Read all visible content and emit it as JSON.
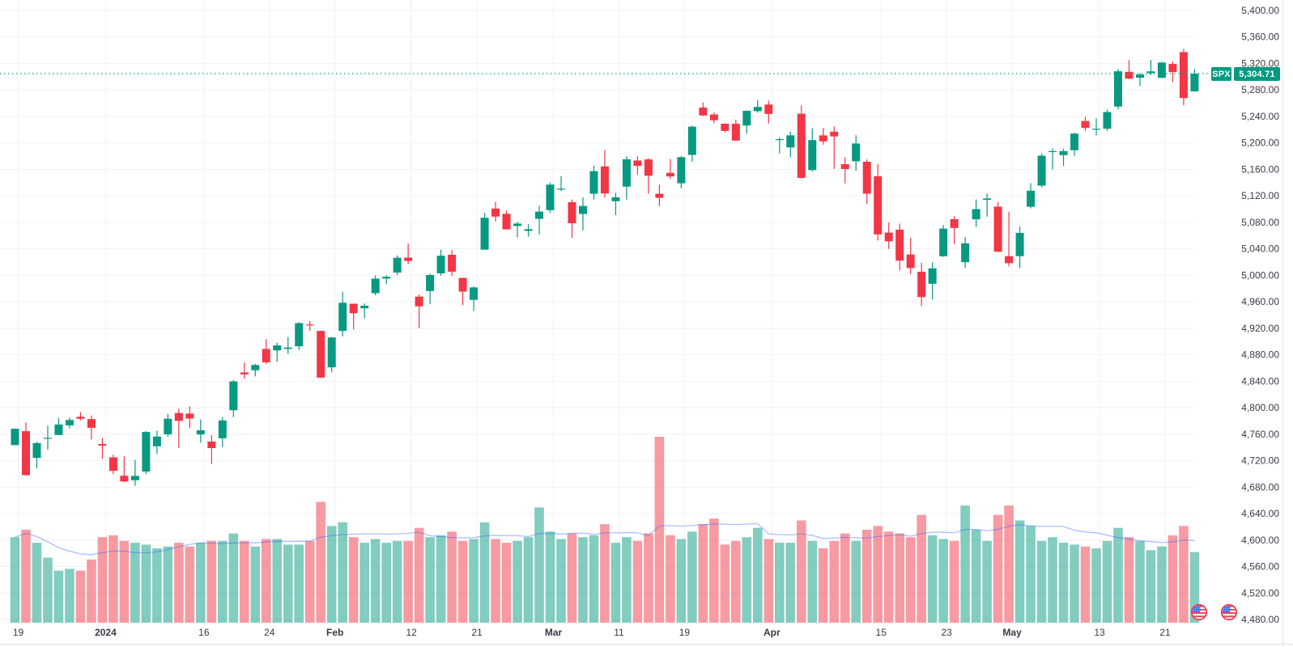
{
  "symbol": {
    "label": "SPX",
    "last_price_label": "5,304.71"
  },
  "colors": {
    "background": "#ffffff",
    "up": "#089981",
    "down": "#f23645",
    "volume_up": "rgba(8,153,129,0.5)",
    "volume_down": "rgba(242,54,69,0.5)",
    "grid": "#f0f2f6",
    "axis_text": "#363a45",
    "axis_border": "#e0e3eb",
    "volume_ma_line": "rgba(41,98,255,0.40)",
    "price_line": "#089981",
    "badge": "#089981",
    "flag_ring": "#ef4056",
    "flag_canton": "#2b5cff",
    "flag_stripe": "#f04a5e"
  },
  "chart_data": {
    "type": "candlestick",
    "title": "SPX",
    "last_price": 5304.71,
    "grid": true,
    "legend_position": "none",
    "price_axis": {
      "min": 4480,
      "max": 5400,
      "step": 40,
      "ticks": [
        "5,400.00",
        "5,360.00",
        "5,320.00",
        "5,280.00",
        "5,240.00",
        "5,200.00",
        "5,160.00",
        "5,120.00",
        "5,080.00",
        "5,040.00",
        "5,000.00",
        "4,960.00",
        "4,920.00",
        "4,880.00",
        "4,840.00",
        "4,800.00",
        "4,760.00",
        "4,720.00",
        "4,680.00",
        "4,640.00",
        "4,600.00",
        "4,560.00",
        "4,520.00",
        "4,480.00"
      ]
    },
    "time_axis": {
      "ticks": [
        {
          "i": 0,
          "label": "19",
          "bold": false
        },
        {
          "i": 8,
          "label": "2024",
          "bold": true
        },
        {
          "i": 17,
          "label": "16",
          "bold": false
        },
        {
          "i": 23,
          "label": "24",
          "bold": false
        },
        {
          "i": 29,
          "label": "Feb",
          "bold": true
        },
        {
          "i": 36,
          "label": "12",
          "bold": false
        },
        {
          "i": 42,
          "label": "21",
          "bold": false
        },
        {
          "i": 49,
          "label": "Mar",
          "bold": true
        },
        {
          "i": 55,
          "label": "11",
          "bold": false
        },
        {
          "i": 61,
          "label": "19",
          "bold": false
        },
        {
          "i": 69,
          "label": "Apr",
          "bold": true
        },
        {
          "i": 79,
          "label": "15",
          "bold": false
        },
        {
          "i": 85,
          "label": "23",
          "bold": false
        },
        {
          "i": 91,
          "label": "May",
          "bold": true
        },
        {
          "i": 99,
          "label": "13",
          "bold": false
        },
        {
          "i": 105,
          "label": "21",
          "bold": false
        }
      ],
      "event_flags": [
        {
          "icon": "us-flag-icon"
        },
        {
          "icon": "us-flag-icon"
        }
      ]
    },
    "volume_ma_period": 10,
    "columns": [
      "date",
      "open",
      "high",
      "low",
      "close",
      "volume_rel"
    ],
    "candles": [
      [
        "12-19",
        4743.7,
        4768.7,
        4743.7,
        4768.4,
        4.6
      ],
      [
        "12-20",
        4764.7,
        4778.0,
        4697.8,
        4698.3,
        5.0
      ],
      [
        "12-21",
        4724.3,
        4748.7,
        4708.3,
        4746.8,
        4.3
      ],
      [
        "12-22",
        4753.9,
        4772.9,
        4736.8,
        4754.6,
        3.5
      ],
      [
        "12-26",
        4758.9,
        4784.7,
        4758.4,
        4774.8,
        2.8
      ],
      [
        "12-27",
        4773.5,
        4785.4,
        4768.9,
        4781.6,
        2.9
      ],
      [
        "12-28",
        4786.4,
        4793.3,
        4781.0,
        4783.4,
        2.8
      ],
      [
        "12-29",
        4782.9,
        4788.4,
        4752.0,
        4769.8,
        3.4
      ],
      [
        "01-02",
        4745.2,
        4754.3,
        4722.7,
        4742.8,
        4.6
      ],
      [
        "01-03",
        4725.1,
        4729.3,
        4699.7,
        4704.8,
        4.7
      ],
      [
        "01-04",
        4697.4,
        4726.8,
        4687.5,
        4688.7,
        4.4
      ],
      [
        "01-05",
        4690.6,
        4721.5,
        4682.1,
        4697.2,
        4.3
      ],
      [
        "01-08",
        4703.7,
        4764.5,
        4699.8,
        4763.5,
        4.2
      ],
      [
        "01-09",
        4741.9,
        4765.5,
        4730.3,
        4756.5,
        4.0
      ],
      [
        "01-10",
        4759.9,
        4790.8,
        4756.2,
        4783.5,
        4.1
      ],
      [
        "01-11",
        4792.1,
        4798.5,
        4739.6,
        4780.2,
        4.3
      ],
      [
        "01-12",
        4791.2,
        4802.4,
        4769.0,
        4783.8,
        4.1
      ],
      [
        "01-16",
        4759.8,
        4782.3,
        4747.3,
        4766.0,
        4.3
      ],
      [
        "01-17",
        4749.0,
        4758.7,
        4714.8,
        4739.2,
        4.4
      ],
      [
        "01-18",
        4754.0,
        4785.8,
        4740.6,
        4780.9,
        4.4
      ],
      [
        "01-19",
        4796.3,
        4842.1,
        4785.9,
        4839.8,
        4.8
      ],
      [
        "01-22",
        4853.4,
        4868.4,
        4844.1,
        4850.4,
        4.4
      ],
      [
        "01-23",
        4856.7,
        4866.5,
        4847.4,
        4864.6,
        4.1
      ],
      [
        "01-24",
        4888.9,
        4903.7,
        4865.9,
        4868.6,
        4.5
      ],
      [
        "01-25",
        4886.7,
        4898.2,
        4869.3,
        4894.2,
        4.5
      ],
      [
        "01-26",
        4888.9,
        4906.7,
        4881.5,
        4891.0,
        4.2
      ],
      [
        "01-29",
        4892.9,
        4929.3,
        4887.4,
        4927.9,
        4.2
      ],
      [
        "01-30",
        4925.9,
        4931.1,
        4916.3,
        4925.0,
        4.4
      ],
      [
        "01-31",
        4916.1,
        4916.5,
        4845.2,
        4845.6,
        6.5
      ],
      [
        "02-01",
        4861.1,
        4907.0,
        4853.5,
        4906.2,
        5.2
      ],
      [
        "02-02",
        4916.1,
        4975.3,
        4908.0,
        4958.6,
        5.4
      ],
      [
        "02-05",
        4957.2,
        4957.2,
        4918.1,
        4942.8,
        4.6
      ],
      [
        "02-06",
        4950.2,
        4957.8,
        4934.9,
        4954.2,
        4.3
      ],
      [
        "02-07",
        4973.1,
        4999.9,
        4969.8,
        4995.1,
        4.5
      ],
      [
        "02-08",
        4995.2,
        5000.4,
        4987.1,
        4997.9,
        4.3
      ],
      [
        "02-09",
        5004.2,
        5030.1,
        5000.3,
        5026.6,
        4.4
      ],
      [
        "02-12",
        5026.8,
        5048.4,
        5016.8,
        5021.8,
        4.4
      ],
      [
        "02-13",
        4967.9,
        4971.3,
        4920.3,
        4953.2,
        5.1
      ],
      [
        "02-14",
        4976.4,
        5002.5,
        4956.4,
        5000.6,
        4.6
      ],
      [
        "02-15",
        5003.1,
        5038.7,
        4999.5,
        5029.7,
        4.7
      ],
      [
        "02-16",
        5031.1,
        5038.2,
        4999.4,
        5005.6,
        4.9
      ],
      [
        "02-20",
        4996.1,
        4996.1,
        4955.0,
        4975.5,
        4.4
      ],
      [
        "02-21",
        4963.0,
        4983.2,
        4946.0,
        4981.8,
        4.5
      ],
      [
        "02-22",
        5038.8,
        5094.4,
        5038.8,
        5087.0,
        5.4
      ],
      [
        "02-23",
        5100.9,
        5111.1,
        5081.5,
        5088.8,
        4.5
      ],
      [
        "02-26",
        5093.0,
        5097.7,
        5068.9,
        5069.5,
        4.3
      ],
      [
        "02-27",
        5074.6,
        5080.7,
        5057.3,
        5078.2,
        4.4
      ],
      [
        "02-28",
        5067.2,
        5077.4,
        5058.4,
        5069.8,
        4.6
      ],
      [
        "02-29",
        5085.4,
        5105.0,
        5061.9,
        5096.3,
        6.2
      ],
      [
        "03-01",
        5098.5,
        5140.3,
        5094.2,
        5137.1,
        4.9
      ],
      [
        "03-04",
        5131.0,
        5149.7,
        5127.2,
        5131.0,
        4.5
      ],
      [
        "03-05",
        5110.5,
        5114.5,
        5056.8,
        5078.7,
        4.8
      ],
      [
        "03-06",
        5092.8,
        5117.9,
        5068.0,
        5104.8,
        4.6
      ],
      [
        "03-07",
        5123.3,
        5165.6,
        5114.5,
        5157.4,
        4.7
      ],
      [
        "03-08",
        5164.5,
        5189.3,
        5117.5,
        5123.7,
        5.3
      ],
      [
        "03-11",
        5112.0,
        5124.7,
        5091.1,
        5117.9,
        4.3
      ],
      [
        "03-12",
        5134.0,
        5179.9,
        5114.5,
        5175.3,
        4.6
      ],
      [
        "03-13",
        5173.5,
        5179.9,
        5151.9,
        5165.3,
        4.4
      ],
      [
        "03-14",
        5175.1,
        5176.9,
        5123.3,
        5150.5,
        4.8
      ],
      [
        "03-15",
        5123.3,
        5136.9,
        5104.4,
        5117.1,
        10.0
      ],
      [
        "03-18",
        5154.8,
        5175.6,
        5145.5,
        5149.4,
        4.7
      ],
      [
        "03-19",
        5139.1,
        5180.3,
        5131.6,
        5178.5,
        4.5
      ],
      [
        "03-20",
        5181.9,
        5226.2,
        5171.5,
        5224.6,
        4.9
      ],
      [
        "03-21",
        5253.4,
        5261.1,
        5240.7,
        5241.5,
        5.3
      ],
      [
        "03-22",
        5242.9,
        5246.1,
        5229.9,
        5234.2,
        5.6
      ],
      [
        "03-25",
        5229.1,
        5229.1,
        5216.1,
        5218.2,
        4.2
      ],
      [
        "03-26",
        5228.9,
        5235.2,
        5203.4,
        5203.6,
        4.4
      ],
      [
        "03-27",
        5226.3,
        5249.3,
        5213.9,
        5248.5,
        4.6
      ],
      [
        "03-28",
        5248.0,
        5264.9,
        5245.8,
        5254.4,
        5.1
      ],
      [
        "04-01",
        5258.0,
        5264.0,
        5229.2,
        5243.8,
        4.5
      ],
      [
        "04-02",
        5204.3,
        5208.3,
        5184.1,
        5205.8,
        4.3
      ],
      [
        "04-03",
        5193.2,
        5217.0,
        5178.0,
        5211.5,
        4.3
      ],
      [
        "04-04",
        5244.1,
        5256.6,
        5146.1,
        5147.2,
        5.5
      ],
      [
        "04-05",
        5159.0,
        5222.2,
        5157.2,
        5204.3,
        4.4
      ],
      [
        "04-08",
        5211.4,
        5222.7,
        5197.4,
        5202.4,
        4.0
      ],
      [
        "04-09",
        5217.0,
        5224.8,
        5160.8,
        5209.9,
        4.4
      ],
      [
        "04-10",
        5167.9,
        5178.4,
        5138.7,
        5160.6,
        4.8
      ],
      [
        "04-11",
        5172.3,
        5211.8,
        5157.9,
        5199.1,
        4.4
      ],
      [
        "04-12",
        5171.6,
        5175.0,
        5107.9,
        5123.4,
        5.0
      ],
      [
        "04-15",
        5149.7,
        5168.4,
        5052.5,
        5061.8,
        5.2
      ],
      [
        "04-16",
        5064.6,
        5079.8,
        5039.8,
        5051.4,
        4.9
      ],
      [
        "04-17",
        5069.0,
        5078.0,
        5007.3,
        5022.2,
        4.8
      ],
      [
        "04-18",
        5031.5,
        5056.7,
        5001.9,
        5011.1,
        4.6
      ],
      [
        "04-19",
        5005.4,
        5019.0,
        4953.6,
        4967.2,
        5.8
      ],
      [
        "04-22",
        4987.3,
        5019.8,
        4963.5,
        5010.6,
        4.7
      ],
      [
        "04-23",
        5028.9,
        5076.1,
        5028.0,
        5070.6,
        4.5
      ],
      [
        "04-24",
        5084.9,
        5089.5,
        5047.0,
        5071.6,
        4.4
      ],
      [
        "04-25",
        5019.9,
        5057.8,
        5011.1,
        5048.4,
        6.3
      ],
      [
        "04-26",
        5084.7,
        5114.6,
        5073.1,
        5100.0,
        5.0
      ],
      [
        "04-29",
        5114.1,
        5123.5,
        5088.7,
        5116.2,
        4.4
      ],
      [
        "04-30",
        5103.8,
        5110.8,
        5035.3,
        5035.7,
        5.8
      ],
      [
        "05-01",
        5029.0,
        5096.1,
        5013.5,
        5018.4,
        6.3
      ],
      [
        "05-02",
        5029.0,
        5073.2,
        5011.1,
        5064.2,
        5.5
      ],
      [
        "05-03",
        5103.6,
        5139.1,
        5101.2,
        5127.8,
        5.2
      ],
      [
        "05-06",
        5135.5,
        5184.2,
        5133.1,
        5180.7,
        4.4
      ],
      [
        "05-07",
        5187.2,
        5192.0,
        5160.1,
        5187.7,
        4.6
      ],
      [
        "05-08",
        5181.6,
        5191.4,
        5165.2,
        5187.7,
        4.3
      ],
      [
        "05-09",
        5189.0,
        5215.3,
        5180.4,
        5214.1,
        4.2
      ],
      [
        "05-10",
        5233.1,
        5239.7,
        5217.9,
        5222.7,
        4.1
      ],
      [
        "05-13",
        5221.1,
        5237.3,
        5211.2,
        5221.4,
        4.0
      ],
      [
        "05-14",
        5221.5,
        5250.4,
        5218.0,
        5246.7,
        4.4
      ],
      [
        "05-15",
        5255.0,
        5311.8,
        5250.8,
        5308.2,
        5.1
      ],
      [
        "05-16",
        5307.4,
        5325.3,
        5296.3,
        5297.1,
        4.6
      ],
      [
        "05-17",
        5298.6,
        5305.5,
        5286.0,
        5303.3,
        4.4
      ],
      [
        "05-20",
        5305.4,
        5325.5,
        5302.4,
        5308.1,
        3.9
      ],
      [
        "05-21",
        5298.3,
        5322.5,
        5297.9,
        5321.4,
        4.1
      ],
      [
        "05-22",
        5319.3,
        5323.2,
        5291.7,
        5307.0,
        4.7
      ],
      [
        "05-23",
        5337.2,
        5341.9,
        5256.9,
        5267.8,
        5.2
      ],
      [
        "05-24",
        5277.9,
        5311.6,
        5277.9,
        5304.7,
        3.8
      ]
    ]
  }
}
